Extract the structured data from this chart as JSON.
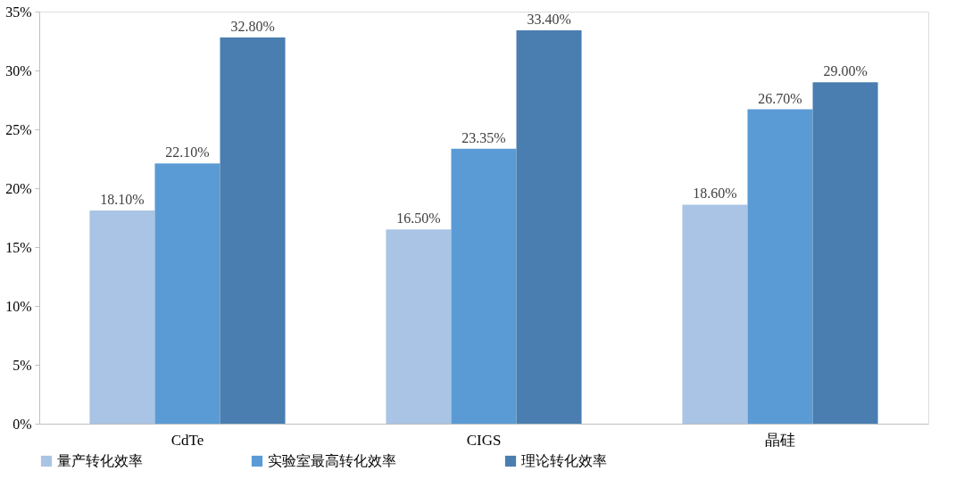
{
  "chart_data": {
    "type": "bar",
    "categories": [
      "CdTe",
      "CIGS",
      "晶硅"
    ],
    "series": [
      {
        "name": "量产转化效率",
        "color": "#a9c4e4",
        "values": [
          18.1,
          16.5,
          18.6
        ],
        "value_labels": [
          "18.10%",
          "16.50%",
          "18.60%"
        ]
      },
      {
        "name": "实验室最高转化效率",
        "color": "#5b9bd5",
        "values": [
          22.1,
          23.35,
          26.7
        ],
        "value_labels": [
          "22.10%",
          "23.35%",
          "26.70%"
        ]
      },
      {
        "name": "理论转化效率",
        "color": "#4a7eb0",
        "values": [
          32.8,
          33.4,
          29.0
        ],
        "value_labels": [
          "32.80%",
          "33.40%",
          "29.00%"
        ]
      }
    ],
    "ylim": [
      0,
      35
    ],
    "yticks": [
      {
        "value": 0,
        "label": "0%"
      },
      {
        "value": 5,
        "label": "5%"
      },
      {
        "value": 10,
        "label": "10%"
      },
      {
        "value": 15,
        "label": "15%"
      },
      {
        "value": 20,
        "label": "20%"
      },
      {
        "value": 25,
        "label": "25%"
      },
      {
        "value": 30,
        "label": "30%"
      },
      {
        "value": 35,
        "label": "35%"
      }
    ],
    "grid": false,
    "legend": "bottom"
  }
}
